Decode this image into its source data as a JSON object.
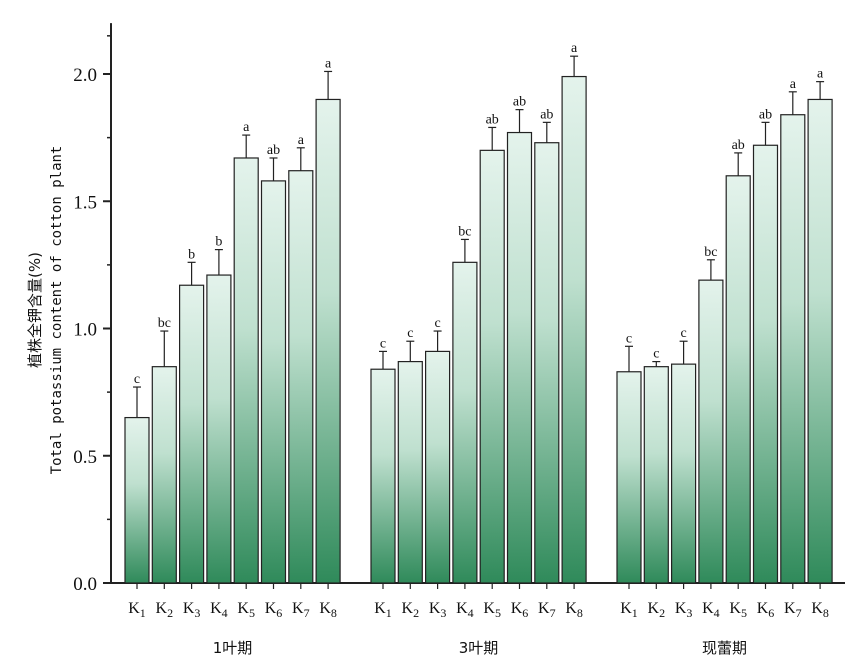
{
  "chart_data": {
    "type": "bar",
    "ylabel_zh": "植株全钾含量(%)",
    "ylabel_en": "Total potassium content of cotton plant",
    "ylim": [
      0,
      2.2
    ],
    "yticks": [
      "0.0",
      "0.5",
      "1.0",
      "1.5",
      "2.0"
    ],
    "ytick_values": [
      0,
      0.5,
      1.0,
      1.5,
      2.0
    ],
    "grid": false,
    "bar_color_top": "#e4f3ec",
    "bar_color_bottom": "#2f8a5a",
    "categories": [
      {
        "base": "K",
        "sub": "1"
      },
      {
        "base": "K",
        "sub": "2"
      },
      {
        "base": "K",
        "sub": "3"
      },
      {
        "base": "K",
        "sub": "4"
      },
      {
        "base": "K",
        "sub": "5"
      },
      {
        "base": "K",
        "sub": "6"
      },
      {
        "base": "K",
        "sub": "7"
      },
      {
        "base": "K",
        "sub": "8"
      }
    ],
    "groups": [
      {
        "name": "1叶期",
        "values": [
          0.65,
          0.85,
          1.17,
          1.21,
          1.67,
          1.58,
          1.62,
          1.9
        ],
        "errors": [
          0.12,
          0.14,
          0.09,
          0.1,
          0.09,
          0.09,
          0.09,
          0.11
        ],
        "letters": [
          "c",
          "bc",
          "b",
          "b",
          "a",
          "ab",
          "a",
          "a"
        ]
      },
      {
        "name": "3叶期",
        "values": [
          0.84,
          0.87,
          0.91,
          1.26,
          1.7,
          1.77,
          1.73,
          1.99
        ],
        "errors": [
          0.07,
          0.08,
          0.08,
          0.09,
          0.09,
          0.09,
          0.08,
          0.08
        ],
        "letters": [
          "c",
          "c",
          "c",
          "bc",
          "ab",
          "ab",
          "ab",
          "a"
        ]
      },
      {
        "name": "现蕾期",
        "values": [
          0.83,
          0.85,
          0.86,
          1.19,
          1.6,
          1.72,
          1.84,
          1.9
        ],
        "errors": [
          0.1,
          0.02,
          0.09,
          0.08,
          0.09,
          0.09,
          0.09,
          0.07
        ],
        "letters": [
          "c",
          "c",
          "c",
          "bc",
          "ab",
          "ab",
          "a",
          "a"
        ]
      }
    ]
  }
}
